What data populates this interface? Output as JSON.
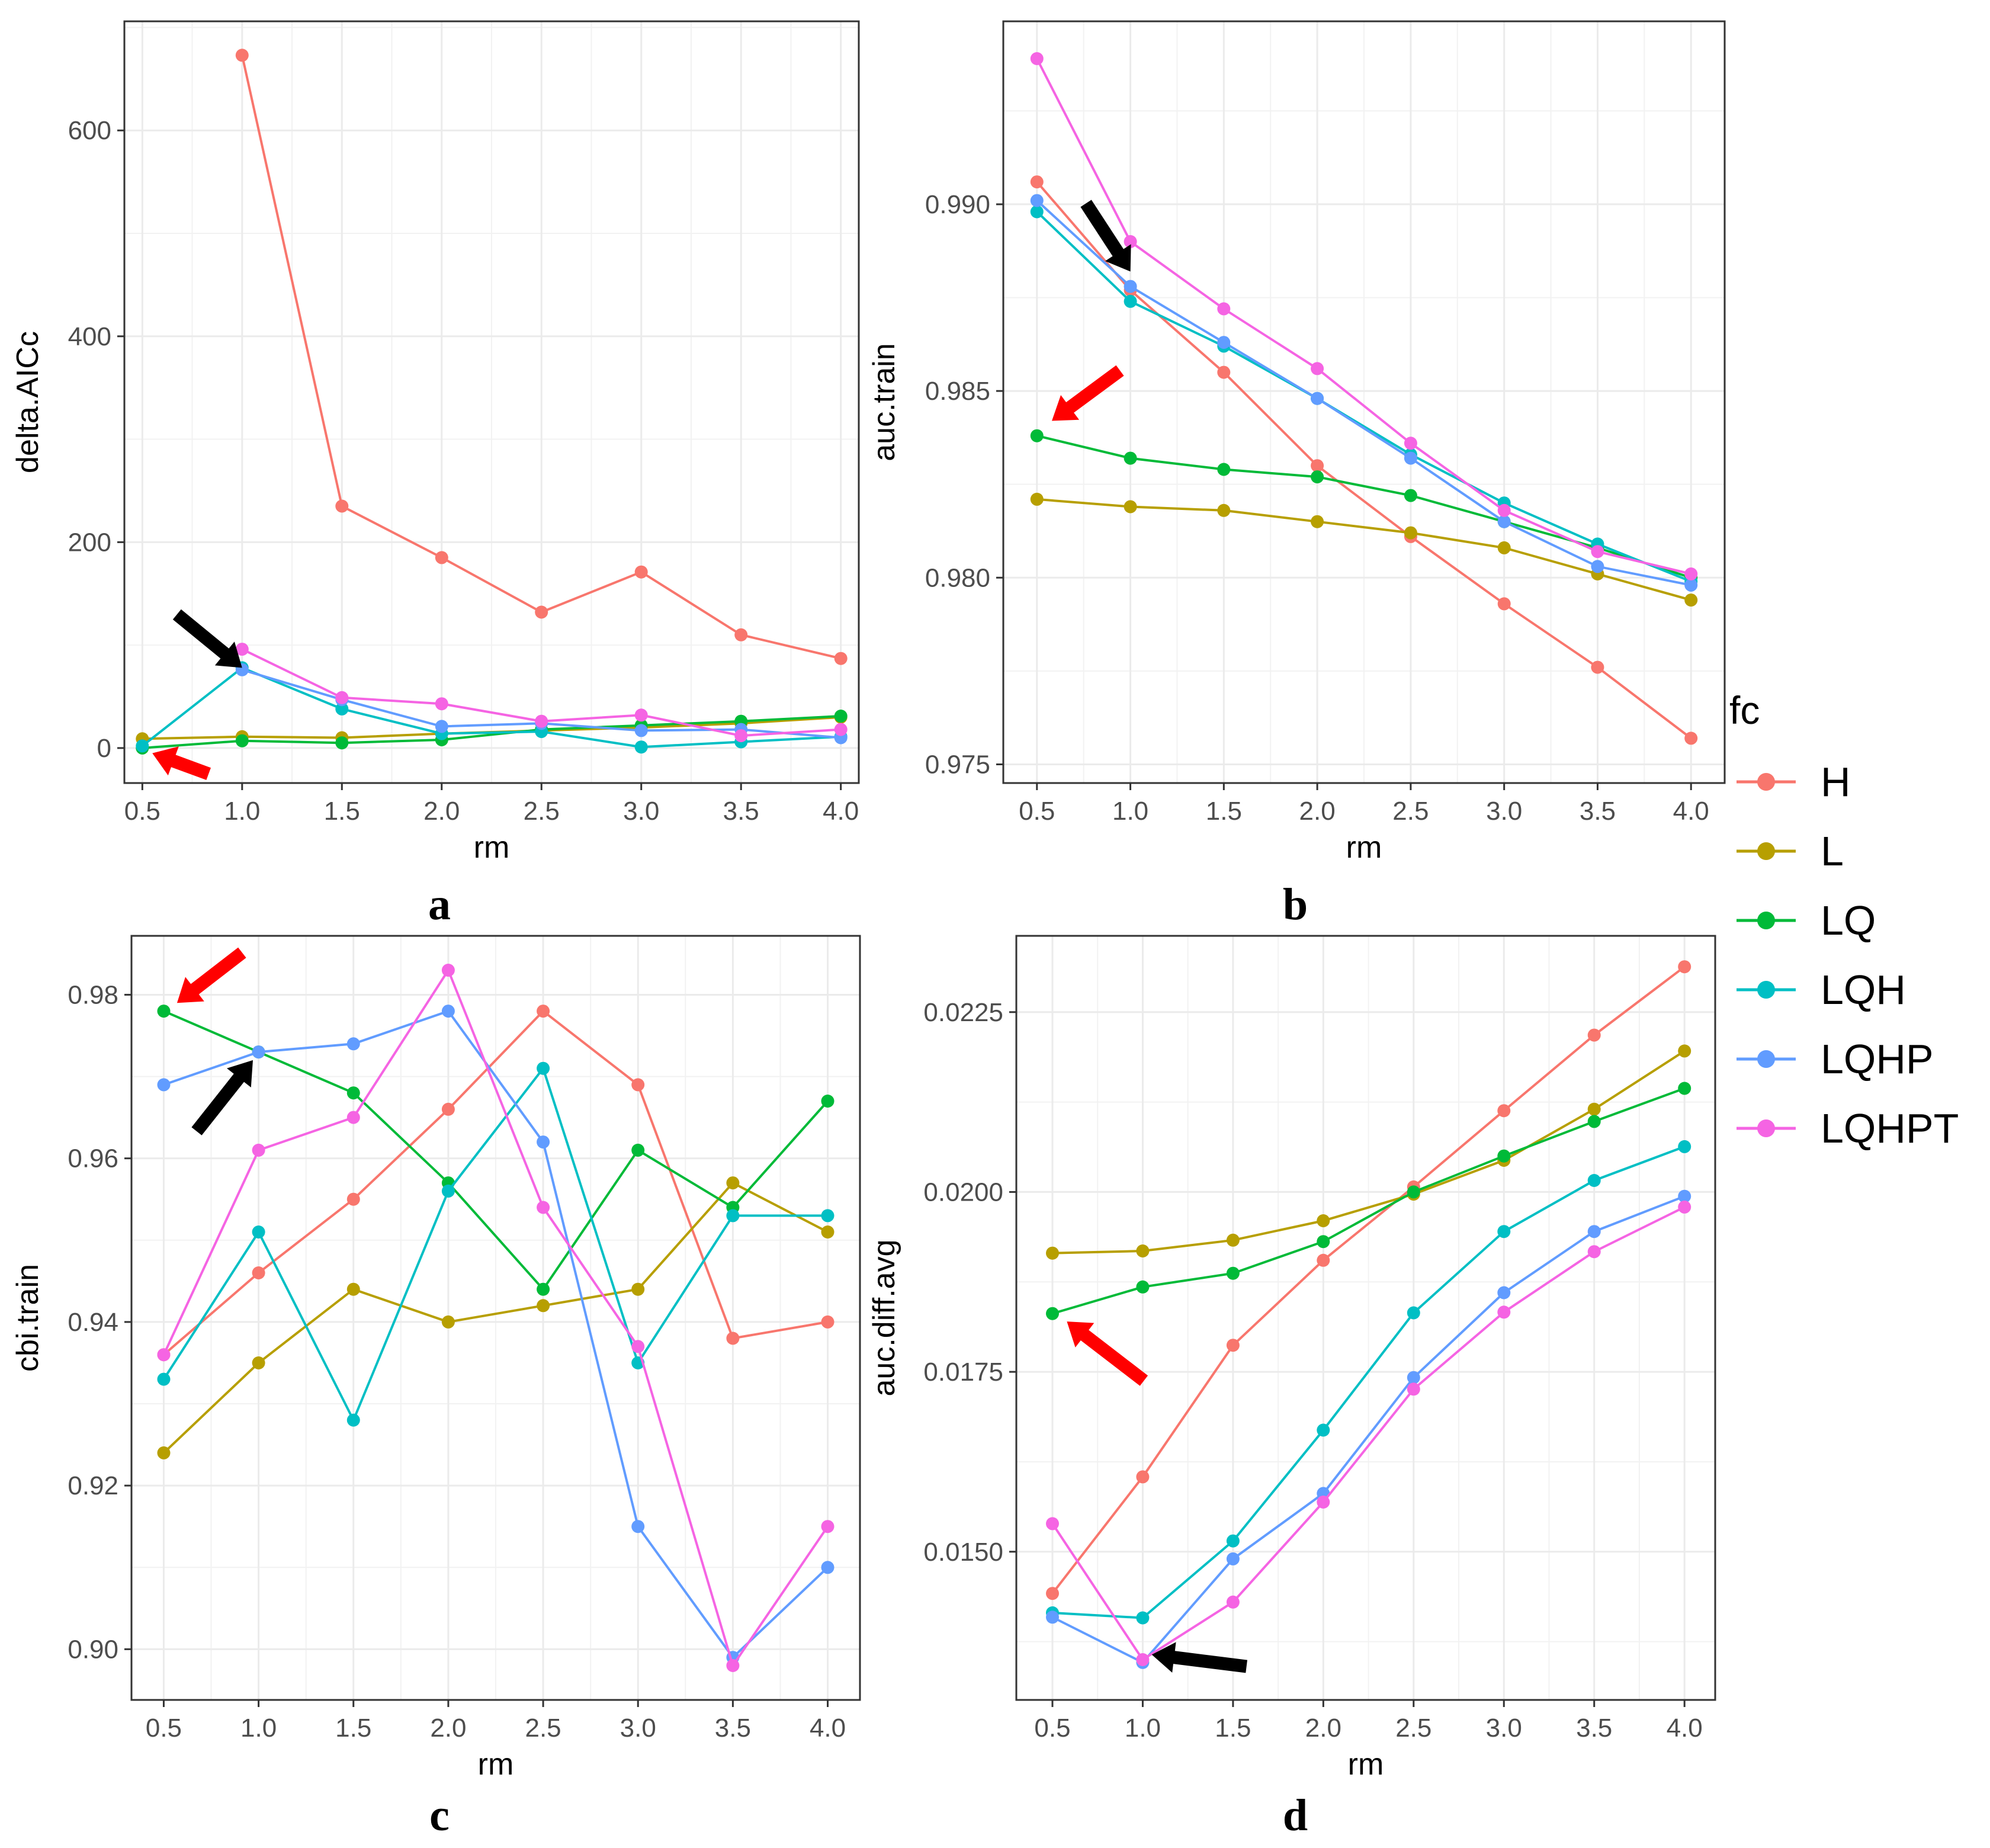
{
  "chart_data": [
    {
      "type": "line",
      "panel_label": "a",
      "xlabel": "rm",
      "ylabel": "delta.AICc",
      "x": [
        0.5,
        1.0,
        1.5,
        2.0,
        2.5,
        3.0,
        3.5,
        4.0
      ],
      "xticks": [
        "0.5",
        "1.0",
        "1.5",
        "2.0",
        "2.5",
        "3.0",
        "3.5",
        "4.0"
      ],
      "yticks": [
        "0",
        "200",
        "400",
        "600"
      ],
      "ytick_values": [
        0,
        200,
        400,
        600
      ],
      "xlim": [
        0.41,
        4.09
      ],
      "ylim": [
        -34,
        706
      ],
      "grid": true,
      "series": [
        {
          "name": "H",
          "values": [
            null,
            673,
            235,
            185,
            132,
            171,
            110,
            87
          ]
        },
        {
          "name": "L",
          "values": [
            9,
            11,
            10,
            14,
            17,
            20,
            24,
            30
          ]
        },
        {
          "name": "LQ",
          "values": [
            0,
            7,
            5,
            8,
            18,
            22,
            26,
            31
          ]
        },
        {
          "name": "LQH",
          "values": [
            2,
            78,
            38,
            14,
            16,
            1,
            6,
            11
          ]
        },
        {
          "name": "LQHP",
          "values": [
            null,
            76,
            47,
            21,
            24,
            17,
            18,
            10
          ]
        },
        {
          "name": "LQHPT",
          "values": [
            null,
            96,
            49,
            43,
            26,
            32,
            12,
            18
          ]
        }
      ],
      "arrows": [
        {
          "color": "black",
          "x": 1.0,
          "y": 78
        },
        {
          "color": "red",
          "x": 0.55,
          "y": -5
        }
      ]
    },
    {
      "type": "line",
      "panel_label": "b",
      "xlabel": "rm",
      "ylabel": "auc.train",
      "x": [
        0.5,
        1.0,
        1.5,
        2.0,
        2.5,
        3.0,
        3.5,
        4.0
      ],
      "xticks": [
        "0.5",
        "1.0",
        "1.5",
        "2.0",
        "2.5",
        "3.0",
        "3.5",
        "4.0"
      ],
      "yticks": [
        "0.975",
        "0.980",
        "0.985",
        "0.990"
      ],
      "ytick_values": [
        0.975,
        0.98,
        0.985,
        0.99
      ],
      "xlim": [
        0.32,
        4.18
      ],
      "ylim": [
        0.9745,
        0.9949
      ],
      "grid": true,
      "series": [
        {
          "name": "H",
          "values": [
            0.9906,
            0.9877,
            0.9855,
            0.983,
            0.9811,
            0.9793,
            0.9776,
            0.9757
          ]
        },
        {
          "name": "L",
          "values": [
            0.9821,
            0.9819,
            0.9818,
            0.9815,
            0.9812,
            0.9808,
            0.9801,
            0.9794
          ]
        },
        {
          "name": "LQ",
          "values": [
            0.9838,
            0.9832,
            0.9829,
            0.9827,
            0.9822,
            0.9815,
            0.9808,
            0.98
          ]
        },
        {
          "name": "LQH",
          "values": [
            0.9898,
            0.9874,
            0.9862,
            0.9848,
            0.9833,
            0.982,
            0.9809,
            0.9799
          ]
        },
        {
          "name": "LQHP",
          "values": [
            0.9901,
            0.9878,
            0.9863,
            0.9848,
            0.9832,
            0.9815,
            0.9803,
            0.9798
          ]
        },
        {
          "name": "LQHPT",
          "values": [
            0.9939,
            0.989,
            0.9872,
            0.9856,
            0.9836,
            0.9818,
            0.9807,
            0.9801
          ]
        }
      ],
      "arrows": [
        {
          "color": "black",
          "x": 1.0,
          "y": 0.9882
        },
        {
          "color": "red",
          "x": 0.58,
          "y": 0.9842
        }
      ]
    },
    {
      "type": "line",
      "panel_label": "c",
      "xlabel": "rm",
      "ylabel": "cbi.train",
      "x": [
        0.5,
        1.0,
        1.5,
        2.0,
        2.5,
        3.0,
        3.5,
        4.0
      ],
      "xticks": [
        "0.5",
        "1.0",
        "1.5",
        "2.0",
        "2.5",
        "3.0",
        "3.5",
        "4.0"
      ],
      "yticks": [
        "0.90",
        "0.92",
        "0.94",
        "0.96",
        "0.98"
      ],
      "ytick_values": [
        0.9,
        0.92,
        0.94,
        0.96,
        0.98
      ],
      "xlim": [
        0.33,
        4.17
      ],
      "ylim": [
        0.8938,
        0.9872
      ],
      "grid": true,
      "series": [
        {
          "name": "H",
          "values": [
            0.936,
            0.946,
            0.955,
            0.966,
            0.978,
            0.969,
            0.938,
            0.94
          ]
        },
        {
          "name": "L",
          "values": [
            0.924,
            0.935,
            0.944,
            0.94,
            0.942,
            0.944,
            0.957,
            0.951
          ]
        },
        {
          "name": "LQ",
          "values": [
            0.978,
            0.973,
            0.968,
            0.957,
            0.944,
            0.961,
            0.954,
            0.967
          ]
        },
        {
          "name": "LQH",
          "values": [
            0.933,
            0.951,
            0.928,
            0.956,
            0.971,
            0.935,
            0.953,
            0.953
          ]
        },
        {
          "name": "LQHP",
          "values": [
            0.969,
            0.973,
            0.974,
            0.978,
            0.962,
            0.915,
            0.899,
            0.91
          ]
        },
        {
          "name": "LQHPT",
          "values": [
            0.936,
            0.961,
            0.965,
            0.983,
            0.954,
            0.937,
            0.898,
            0.915
          ]
        }
      ],
      "arrows": [
        {
          "color": "red",
          "x": 0.57,
          "y": 0.979
        },
        {
          "color": "black",
          "x": 0.97,
          "y": 0.972
        }
      ]
    },
    {
      "type": "line",
      "panel_label": "d",
      "xlabel": "rm",
      "ylabel": "auc.diff.avg",
      "x": [
        0.5,
        1.0,
        1.5,
        2.0,
        2.5,
        3.0,
        3.5,
        4.0
      ],
      "xticks": [
        "0.5",
        "1.0",
        "1.5",
        "2.0",
        "2.5",
        "3.0",
        "3.5",
        "4.0"
      ],
      "yticks": [
        "0.0150",
        "0.0175",
        "0.0200",
        "0.0225"
      ],
      "ytick_values": [
        0.015,
        0.0175,
        0.02,
        0.0225
      ],
      "xlim": [
        0.3,
        4.17
      ],
      "ylim": [
        0.01294,
        0.02356
      ],
      "grid": true,
      "series": [
        {
          "name": "H",
          "values": [
            0.01442,
            0.01604,
            0.01787,
            0.01905,
            0.02007,
            0.02113,
            0.02218,
            0.02313
          ]
        },
        {
          "name": "L",
          "values": [
            0.01915,
            0.01918,
            0.01933,
            0.0196,
            0.01997,
            0.02044,
            0.02115,
            0.02196
          ]
        },
        {
          "name": "LQ",
          "values": [
            0.01831,
            0.01868,
            0.01887,
            0.01931,
            0.02,
            0.0205,
            0.02098,
            0.02144
          ]
        },
        {
          "name": "LQH",
          "values": [
            0.01415,
            0.01408,
            0.01515,
            0.01669,
            0.01832,
            0.01945,
            0.02016,
            0.02063
          ]
        },
        {
          "name": "LQHP",
          "values": [
            0.01409,
            0.01346,
            0.0149,
            0.01581,
            0.01742,
            0.0186,
            0.01945,
            0.01994
          ]
        },
        {
          "name": "LQHPT",
          "values": [
            0.01539,
            0.0135,
            0.0143,
            0.01569,
            0.01726,
            0.01833,
            0.01917,
            0.01979
          ]
        }
      ],
      "arrows": [
        {
          "color": "red",
          "x": 0.58,
          "y": 0.0182
        },
        {
          "color": "black",
          "x": 1.05,
          "y": 0.01357
        }
      ]
    }
  ],
  "legend": {
    "title": "fc",
    "items": [
      {
        "label": "H",
        "color": "#F8766D"
      },
      {
        "label": "L",
        "color": "#B79F00"
      },
      {
        "label": "LQ",
        "color": "#00BA38"
      },
      {
        "label": "LQH",
        "color": "#00BFC4"
      },
      {
        "label": "LQHP",
        "color": "#619CFF"
      },
      {
        "label": "LQHPT",
        "color": "#F564E3"
      }
    ]
  },
  "colors": {
    "H": "#F8766D",
    "L": "#B79F00",
    "LQ": "#00BA38",
    "LQH": "#00BFC4",
    "LQHP": "#619CFF",
    "LQHPT": "#F564E3",
    "arrow_red": "#FF0000",
    "arrow_black": "#000000"
  }
}
